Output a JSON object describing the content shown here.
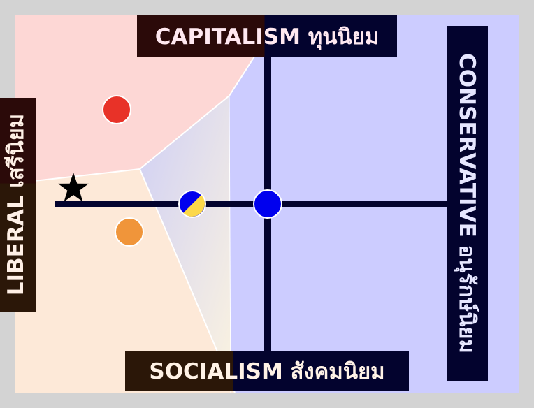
{
  "labels": {
    "top": "CAPITALISM ทุนนิยม",
    "bottom": "SOCIALISM สังคมนิยม",
    "left": "LIBERAL เสรีนิยม",
    "right": "CONSERVATIVE อนุรักษ์นิยม"
  },
  "colors": {
    "page_bg": "#d3d3d3",
    "region_capitalist_liberal": "#fdd7d5",
    "region_socialist_liberal": "#fde9d8",
    "region_conservative": "#ccccff",
    "axis": "#03032e",
    "dot_red": "#e83228",
    "dot_orange": "#f0953a",
    "dot_blue": "#0000ee",
    "dot_yellow": "#fcd84a",
    "star": "#000000"
  },
  "markers": [
    {
      "name": "red-dot",
      "icon": "filled-circle",
      "color": "#e83228"
    },
    {
      "name": "orange-dot",
      "icon": "filled-circle",
      "color": "#f0953a"
    },
    {
      "name": "blue-yellow-dot",
      "icon": "half-blue-half-yellow-circle"
    },
    {
      "name": "blue-dot",
      "icon": "filled-circle",
      "color": "#0000ee"
    },
    {
      "name": "star-marker",
      "icon": "black-star"
    }
  ]
}
